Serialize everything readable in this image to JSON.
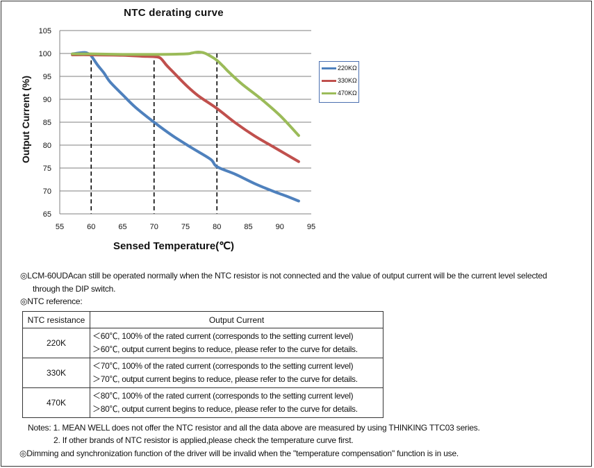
{
  "chart_data": {
    "type": "line",
    "title": "NTC  derating curve",
    "xlabel": "Sensed Temperature(℃)",
    "ylabel": "Output Current (%)",
    "xlim": [
      55,
      95
    ],
    "ylim": [
      65,
      105
    ],
    "xticks": [
      55,
      60,
      65,
      70,
      75,
      80,
      85,
      90,
      95
    ],
    "yticks": [
      65,
      70,
      75,
      80,
      85,
      90,
      95,
      100,
      105
    ],
    "grid": "horizontal",
    "legend_position": "right",
    "reference_lines_x": [
      60,
      70,
      80
    ],
    "series": [
      {
        "name": "220KΩ",
        "color": "#4f81bd",
        "x": [
          57,
          58,
          59,
          59.5,
          60,
          61,
          62,
          63,
          65,
          67,
          70,
          73,
          76,
          79,
          80,
          83,
          86,
          89,
          91,
          93
        ],
        "y": [
          99.9,
          100.1,
          100.2,
          100.0,
          99.5,
          97.5,
          95.8,
          93.8,
          91.0,
          88.3,
          85.0,
          82.0,
          79.4,
          76.9,
          75.3,
          73.6,
          71.6,
          69.9,
          68.9,
          67.8
        ]
      },
      {
        "name": "330KΩ",
        "color": "#c0504d",
        "x": [
          57,
          60,
          65,
          68,
          70,
          71,
          72,
          73,
          75,
          77,
          80,
          83,
          86,
          89,
          91,
          93
        ],
        "y": [
          99.7,
          99.7,
          99.6,
          99.4,
          99.3,
          99.0,
          97.4,
          96.0,
          93.2,
          90.8,
          88.0,
          84.8,
          82.0,
          79.6,
          78.0,
          76.4
        ]
      },
      {
        "name": "470KΩ",
        "color": "#9bbb59",
        "x": [
          57,
          60,
          65,
          70,
          75,
          76,
          77,
          78,
          79,
          80,
          81,
          82,
          84,
          87,
          90,
          93
        ],
        "y": [
          99.9,
          99.9,
          99.8,
          99.8,
          99.9,
          100.1,
          100.3,
          100.1,
          99.4,
          98.5,
          97.2,
          95.8,
          93.3,
          90.1,
          86.5,
          82.1
        ]
      }
    ]
  },
  "notes": {
    "mark": "◎",
    "note1_line1": "LCM-60UDAcan still be operated normally when the NTC resistor is not connected and the value of output current will be the current level selected",
    "note1_line2": "through the DIP switch.",
    "note2": "NTC reference:"
  },
  "table": {
    "headers": [
      "NTC resistance",
      "Output Current"
    ],
    "rows": [
      {
        "resistance": "220K",
        "line1": "＜60℃, 100% of the rated current (corresponds to the setting current level)",
        "line2": "＞60℃, output current begins to reduce, please refer to the curve for details."
      },
      {
        "resistance": "330K",
        "line1": "＜70℃, 100% of the rated current (corresponds to the setting current level)",
        "line2": "＞70℃, output current begins to reduce, please refer to the curve for details."
      },
      {
        "resistance": "470K",
        "line1": "＜80℃, 100% of the rated current (corresponds to the setting current level)",
        "line2": "＞80℃, output current begins to reduce, please refer to the curve for details."
      }
    ]
  },
  "footer": {
    "notes1": "Notes: 1. MEAN WELL does not offer the NTC resistor and all the data above are measured by using THINKING TTC03 series.",
    "notes2": "2. If other brands of NTC resistor is applied,please check the temperature curve first.",
    "dimming": "Dimming and synchronization function of the driver will be invalid when the \"temperature compensation\" function is in use."
  }
}
